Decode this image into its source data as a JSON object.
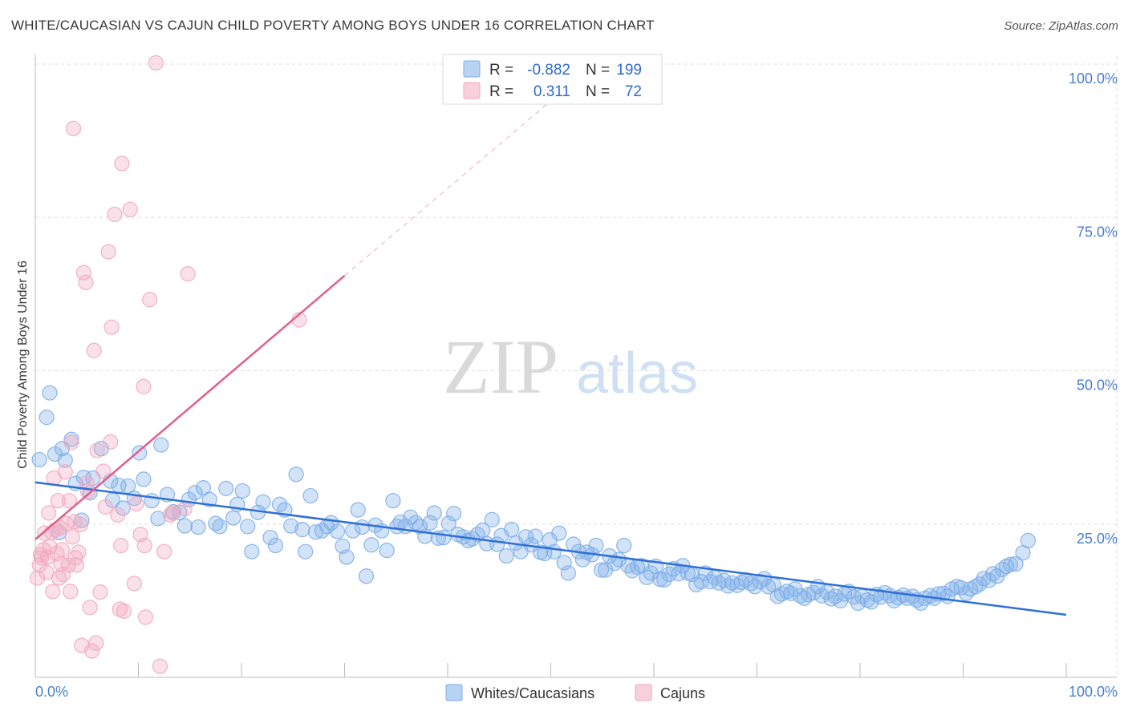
{
  "title": "WHITE/CAUCASIAN VS CAJUN CHILD POVERTY AMONG BOYS UNDER 16 CORRELATION CHART",
  "source": "Source: ZipAtlas.com",
  "watermark": {
    "part1": "ZIP",
    "part2": "atlas"
  },
  "chart_data": {
    "type": "scatter",
    "xlabel": "",
    "ylabel": "Child Poverty Among Boys Under 16",
    "xlim": [
      0,
      100
    ],
    "ylim": [
      0,
      100
    ],
    "x_tick_labels": [
      "0.0%",
      "100.0%"
    ],
    "y_tick_labels": [
      "25.0%",
      "50.0%",
      "75.0%",
      "100.0%"
    ],
    "y_ticks": [
      25,
      50,
      75,
      100
    ],
    "grid": true,
    "legend_placement": "top-center",
    "stats": [
      {
        "r_label": "R =",
        "r_value": "-0.882",
        "n_label": "N =",
        "n_value": "199"
      },
      {
        "r_label": "R =",
        "r_value": "0.311",
        "n_label": "N =",
        "n_value": "72"
      }
    ],
    "series": [
      {
        "name": "Whites/Caucasians",
        "color": "#7eaee8",
        "trend_color": "#2f6fd6",
        "trend": {
          "x": [
            0,
            100
          ],
          "y": [
            31.8,
            10.2
          ]
        },
        "points": [
          [
            0.4,
            35.5
          ],
          [
            1.1,
            42.4
          ],
          [
            1.4,
            46.4
          ],
          [
            1.9,
            36.4
          ],
          [
            2.3,
            23.6
          ],
          [
            2.6,
            37.3
          ],
          [
            2.9,
            35.4
          ],
          [
            3.5,
            38.8
          ],
          [
            3.9,
            31.6
          ],
          [
            4.5,
            25.6
          ],
          [
            4.7,
            32.6
          ],
          [
            5.3,
            30.1
          ],
          [
            5.6,
            32.5
          ],
          [
            6.4,
            37.3
          ],
          [
            7.3,
            32.0
          ],
          [
            7.5,
            28.9
          ],
          [
            8.1,
            31.3
          ],
          [
            8.5,
            27.6
          ],
          [
            9.0,
            31.2
          ],
          [
            9.6,
            29.2
          ],
          [
            10.1,
            36.6
          ],
          [
            10.5,
            32.3
          ],
          [
            11.3,
            28.8
          ],
          [
            11.9,
            25.9
          ],
          [
            12.2,
            37.9
          ],
          [
            12.8,
            29.8
          ],
          [
            13.4,
            27.0
          ],
          [
            14.0,
            26.9
          ],
          [
            14.5,
            24.7
          ],
          [
            14.9,
            29.0
          ],
          [
            15.5,
            30.1
          ],
          [
            15.8,
            24.5
          ],
          [
            16.3,
            30.9
          ],
          [
            16.9,
            29.0
          ],
          [
            17.5,
            25.1
          ],
          [
            17.9,
            24.6
          ],
          [
            18.5,
            30.8
          ],
          [
            19.2,
            26.0
          ],
          [
            19.6,
            28.2
          ],
          [
            20.1,
            30.4
          ],
          [
            20.6,
            24.6
          ],
          [
            21.0,
            20.5
          ],
          [
            21.6,
            26.9
          ],
          [
            22.1,
            28.6
          ],
          [
            22.8,
            22.8
          ],
          [
            23.3,
            21.5
          ],
          [
            23.7,
            28.2
          ],
          [
            24.2,
            27.3
          ],
          [
            24.8,
            24.7
          ],
          [
            25.3,
            33.1
          ],
          [
            25.9,
            24.1
          ],
          [
            26.2,
            20.5
          ],
          [
            26.7,
            29.6
          ],
          [
            27.2,
            23.7
          ],
          [
            27.8,
            23.9
          ],
          [
            28.3,
            24.6
          ],
          [
            28.7,
            25.2
          ],
          [
            29.3,
            23.8
          ],
          [
            29.8,
            21.4
          ],
          [
            30.2,
            19.6
          ],
          [
            30.8,
            23.9
          ],
          [
            31.3,
            27.3
          ],
          [
            31.7,
            24.5
          ],
          [
            32.1,
            16.5
          ],
          [
            32.6,
            21.6
          ],
          [
            33.0,
            24.8
          ],
          [
            33.6,
            23.9
          ],
          [
            34.1,
            20.7
          ],
          [
            34.7,
            28.8
          ],
          [
            35.1,
            24.6
          ],
          [
            35.4,
            25.3
          ],
          [
            35.9,
            24.6
          ],
          [
            36.4,
            26.1
          ],
          [
            36.9,
            25.2
          ],
          [
            37.3,
            24.6
          ],
          [
            37.8,
            23.0
          ],
          [
            38.3,
            25.2
          ],
          [
            38.7,
            26.8
          ],
          [
            39.1,
            22.7
          ],
          [
            39.6,
            22.8
          ],
          [
            40.1,
            25.1
          ],
          [
            40.6,
            26.7
          ],
          [
            41.0,
            23.3
          ],
          [
            41.5,
            22.9
          ],
          [
            42.0,
            22.3
          ],
          [
            42.4,
            22.6
          ],
          [
            42.9,
            23.3
          ],
          [
            43.4,
            24.0
          ],
          [
            43.8,
            21.8
          ],
          [
            44.3,
            25.7
          ],
          [
            44.8,
            21.7
          ],
          [
            45.2,
            23.1
          ],
          [
            45.7,
            19.8
          ],
          [
            46.2,
            24.1
          ],
          [
            46.6,
            21.9
          ],
          [
            47.1,
            20.5
          ],
          [
            47.6,
            22.9
          ],
          [
            48.1,
            21.6
          ],
          [
            48.5,
            23.0
          ],
          [
            49.0,
            20.4
          ],
          [
            49.4,
            20.2
          ],
          [
            49.9,
            22.4
          ],
          [
            50.3,
            20.5
          ],
          [
            50.8,
            23.5
          ],
          [
            51.3,
            18.7
          ],
          [
            51.7,
            17.0
          ],
          [
            52.2,
            21.7
          ],
          [
            52.7,
            20.5
          ],
          [
            53.1,
            19.2
          ],
          [
            53.5,
            20.4
          ],
          [
            54.0,
            20.0
          ],
          [
            54.4,
            21.5
          ],
          [
            54.9,
            17.5
          ],
          [
            55.3,
            17.5
          ],
          [
            55.7,
            19.8
          ],
          [
            56.2,
            18.6
          ],
          [
            56.6,
            19.2
          ],
          [
            57.1,
            21.5
          ],
          [
            57.5,
            18.2
          ],
          [
            57.9,
            17.4
          ],
          [
            58.4,
            18.0
          ],
          [
            58.8,
            18.2
          ],
          [
            59.3,
            16.3
          ],
          [
            59.7,
            17.0
          ],
          [
            60.2,
            18.1
          ],
          [
            60.6,
            16.0
          ],
          [
            61.0,
            15.9
          ],
          [
            61.5,
            16.8
          ],
          [
            61.9,
            17.7
          ],
          [
            62.4,
            16.9
          ],
          [
            62.8,
            18.2
          ],
          [
            63.3,
            17.0
          ],
          [
            63.7,
            16.8
          ],
          [
            64.1,
            15.1
          ],
          [
            64.6,
            15.6
          ],
          [
            65.0,
            17.0
          ],
          [
            65.5,
            15.6
          ],
          [
            65.9,
            16.3
          ],
          [
            66.3,
            15.4
          ],
          [
            66.8,
            15.8
          ],
          [
            67.2,
            14.9
          ],
          [
            67.6,
            15.4
          ],
          [
            68.1,
            15.0
          ],
          [
            68.5,
            15.5
          ],
          [
            68.9,
            15.9
          ],
          [
            69.4,
            15.3
          ],
          [
            69.8,
            14.8
          ],
          [
            70.3,
            15.6
          ],
          [
            70.7,
            16.1
          ],
          [
            71.1,
            14.8
          ],
          [
            71.6,
            15.1
          ],
          [
            72.0,
            13.2
          ],
          [
            72.4,
            13.6
          ],
          [
            72.9,
            14.0
          ],
          [
            73.3,
            13.7
          ],
          [
            73.7,
            14.4
          ],
          [
            74.2,
            13.3
          ],
          [
            74.6,
            12.9
          ],
          [
            75.0,
            13.5
          ],
          [
            75.5,
            13.8
          ],
          [
            75.9,
            14.8
          ],
          [
            76.3,
            13.3
          ],
          [
            76.8,
            13.9
          ],
          [
            77.2,
            12.8
          ],
          [
            77.6,
            13.2
          ],
          [
            78.1,
            12.5
          ],
          [
            78.5,
            13.6
          ],
          [
            78.9,
            14.0
          ],
          [
            79.4,
            13.1
          ],
          [
            79.8,
            12.1
          ],
          [
            80.2,
            13.2
          ],
          [
            80.7,
            12.6
          ],
          [
            81.1,
            12.3
          ],
          [
            81.6,
            13.5
          ],
          [
            82.0,
            13.1
          ],
          [
            82.4,
            13.8
          ],
          [
            82.9,
            13.3
          ],
          [
            83.3,
            12.5
          ],
          [
            83.7,
            13.0
          ],
          [
            84.2,
            13.4
          ],
          [
            84.6,
            12.9
          ],
          [
            85.1,
            13.2
          ],
          [
            85.5,
            12.6
          ],
          [
            85.9,
            12.1
          ],
          [
            86.3,
            12.9
          ],
          [
            86.8,
            13.3
          ],
          [
            87.2,
            12.9
          ],
          [
            87.6,
            13.6
          ],
          [
            88.1,
            13.7
          ],
          [
            88.5,
            13.2
          ],
          [
            88.9,
            14.4
          ],
          [
            89.4,
            14.8
          ],
          [
            89.8,
            14.6
          ],
          [
            90.3,
            13.7
          ],
          [
            90.7,
            14.4
          ],
          [
            91.2,
            14.8
          ],
          [
            91.6,
            15.2
          ],
          [
            92.0,
            16.1
          ],
          [
            92.5,
            15.8
          ],
          [
            92.9,
            16.9
          ],
          [
            93.3,
            16.5
          ],
          [
            93.8,
            17.6
          ],
          [
            94.2,
            18.1
          ],
          [
            94.6,
            18.4
          ],
          [
            95.1,
            18.5
          ],
          [
            95.8,
            20.3
          ],
          [
            96.3,
            22.3
          ]
        ]
      },
      {
        "name": "Cajuns",
        "color": "#f2a9c0",
        "trend_color": "#e0608e",
        "trend": {
          "x": [
            0,
            30
          ],
          "y": [
            22.5,
            65.5
          ]
        },
        "trend_extension": {
          "x": [
            30,
            50
          ],
          "y": [
            65.5,
            94.0
          ]
        },
        "points": [
          [
            0.2,
            16.2
          ],
          [
            0.4,
            18.3
          ],
          [
            0.5,
            20.0
          ],
          [
            0.6,
            19.5
          ],
          [
            0.8,
            20.8
          ],
          [
            0.9,
            23.5
          ],
          [
            1.1,
            17.1
          ],
          [
            1.2,
            19.6
          ],
          [
            1.3,
            26.8
          ],
          [
            1.4,
            21.3
          ],
          [
            1.6,
            23.6
          ],
          [
            1.7,
            14.0
          ],
          [
            1.8,
            32.5
          ],
          [
            2.0,
            24.1
          ],
          [
            2.1,
            20.2
          ],
          [
            2.2,
            28.8
          ],
          [
            2.3,
            16.2
          ],
          [
            2.4,
            24.4
          ],
          [
            2.5,
            18.5
          ],
          [
            2.6,
            20.8
          ],
          [
            2.7,
            16.8
          ],
          [
            2.9,
            33.5
          ],
          [
            3.0,
            25.1
          ],
          [
            3.2,
            18.3
          ],
          [
            3.3,
            28.8
          ],
          [
            3.4,
            14.0
          ],
          [
            3.5,
            38.3
          ],
          [
            3.6,
            22.9
          ],
          [
            3.7,
            89.5
          ],
          [
            3.8,
            25.4
          ],
          [
            3.9,
            19.5
          ],
          [
            4.0,
            18.3
          ],
          [
            4.2,
            20.4
          ],
          [
            4.4,
            24.9
          ],
          [
            4.5,
            5.2
          ],
          [
            4.7,
            66.0
          ],
          [
            4.9,
            64.4
          ],
          [
            5.0,
            31.7
          ],
          [
            5.1,
            30.3
          ],
          [
            5.3,
            11.4
          ],
          [
            5.5,
            4.3
          ],
          [
            5.7,
            53.3
          ],
          [
            5.9,
            5.6
          ],
          [
            6.0,
            37.0
          ],
          [
            6.3,
            13.9
          ],
          [
            6.6,
            33.6
          ],
          [
            6.8,
            27.8
          ],
          [
            7.1,
            69.4
          ],
          [
            7.3,
            38.4
          ],
          [
            7.4,
            57.1
          ],
          [
            7.7,
            75.5
          ],
          [
            8.0,
            26.5
          ],
          [
            8.2,
            11.1
          ],
          [
            8.3,
            21.5
          ],
          [
            8.4,
            83.8
          ],
          [
            8.6,
            10.8
          ],
          [
            9.2,
            76.3
          ],
          [
            9.6,
            15.3
          ],
          [
            9.8,
            28.3
          ],
          [
            10.2,
            23.3
          ],
          [
            10.5,
            47.4
          ],
          [
            10.6,
            21.5
          ],
          [
            10.7,
            9.8
          ],
          [
            11.1,
            61.6
          ],
          [
            11.7,
            100.2
          ],
          [
            12.1,
            1.8
          ],
          [
            12.5,
            20.5
          ],
          [
            13.1,
            26.5
          ],
          [
            13.3,
            26.8
          ],
          [
            14.5,
            27.5
          ],
          [
            14.8,
            65.8
          ],
          [
            25.6,
            58.3
          ]
        ]
      }
    ]
  }
}
